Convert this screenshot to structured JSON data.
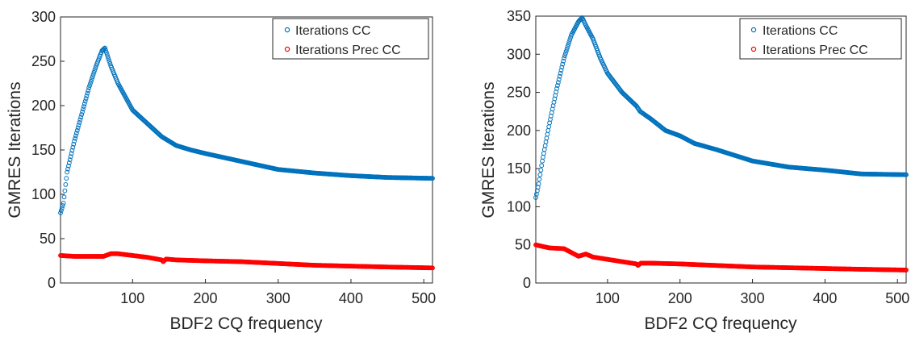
{
  "colors": {
    "series_cc": "#0072BD",
    "series_prec_cc": "#FF0000",
    "axis": "#262626",
    "background": "#FFFFFF"
  },
  "chart_data": [
    {
      "type": "scatter",
      "title": "",
      "xlabel": "BDF2 CQ frequency",
      "ylabel": "GMRES Iterations",
      "xlim": [
        1,
        512
      ],
      "ylim": [
        0,
        300
      ],
      "xticks": [
        100,
        200,
        300,
        400,
        500
      ],
      "yticks": [
        0,
        50,
        100,
        150,
        200,
        250,
        300
      ],
      "grid": false,
      "legend": "top-right",
      "marker": "open-circle",
      "series": [
        {
          "name": "Iterations CC",
          "color": "#0072BD",
          "points": [
            [
              1,
              79
            ],
            [
              5,
              90
            ],
            [
              10,
              125
            ],
            [
              20,
              160
            ],
            [
              30,
              190
            ],
            [
              40,
              220
            ],
            [
              50,
              245
            ],
            [
              58,
              262
            ],
            [
              62,
              265
            ],
            [
              70,
              245
            ],
            [
              80,
              225
            ],
            [
              90,
              210
            ],
            [
              100,
              195
            ],
            [
              120,
              180
            ],
            [
              140,
              165
            ],
            [
              160,
              155
            ],
            [
              180,
              150
            ],
            [
              200,
              146
            ],
            [
              250,
              137
            ],
            [
              300,
              128
            ],
            [
              350,
              124
            ],
            [
              400,
              121
            ],
            [
              450,
              119
            ],
            [
              512,
              118
            ]
          ]
        },
        {
          "name": "Iterations Prec CC",
          "color": "#FF0000",
          "points": [
            [
              1,
              31
            ],
            [
              20,
              30
            ],
            [
              40,
              30
            ],
            [
              60,
              30
            ],
            [
              70,
              33
            ],
            [
              80,
              33
            ],
            [
              100,
              31
            ],
            [
              120,
              29
            ],
            [
              140,
              26
            ],
            [
              142,
              24
            ],
            [
              146,
              27
            ],
            [
              160,
              26
            ],
            [
              200,
              25
            ],
            [
              250,
              24
            ],
            [
              300,
              22
            ],
            [
              350,
              20
            ],
            [
              400,
              19
            ],
            [
              450,
              18
            ],
            [
              512,
              17
            ]
          ]
        }
      ]
    },
    {
      "type": "scatter",
      "title": "",
      "xlabel": "BDF2 CQ frequency",
      "ylabel": "GMRES Iterations",
      "xlim": [
        1,
        512
      ],
      "ylim": [
        0,
        350
      ],
      "xticks": [
        100,
        200,
        300,
        400,
        500
      ],
      "yticks": [
        0,
        50,
        100,
        150,
        200,
        250,
        300,
        350
      ],
      "grid": false,
      "legend": "top-right",
      "marker": "open-circle",
      "series": [
        {
          "name": "Iterations CC",
          "color": "#0072BD",
          "points": [
            [
              1,
              112
            ],
            [
              5,
              130
            ],
            [
              10,
              160
            ],
            [
              20,
              210
            ],
            [
              30,
              255
            ],
            [
              40,
              295
            ],
            [
              50,
              325
            ],
            [
              60,
              343
            ],
            [
              65,
              348
            ],
            [
              70,
              338
            ],
            [
              80,
              320
            ],
            [
              90,
              295
            ],
            [
              100,
              275
            ],
            [
              120,
              250
            ],
            [
              140,
              232
            ],
            [
              145,
              225
            ],
            [
              160,
              215
            ],
            [
              180,
              200
            ],
            [
              200,
              193
            ],
            [
              220,
              183
            ],
            [
              250,
              175
            ],
            [
              300,
              160
            ],
            [
              350,
              152
            ],
            [
              400,
              148
            ],
            [
              450,
              143
            ],
            [
              512,
              142
            ]
          ]
        },
        {
          "name": "Iterations Prec CC",
          "color": "#FF0000",
          "points": [
            [
              1,
              50
            ],
            [
              10,
              48
            ],
            [
              20,
              46
            ],
            [
              40,
              45
            ],
            [
              50,
              40
            ],
            [
              60,
              35
            ],
            [
              70,
              38
            ],
            [
              80,
              34
            ],
            [
              100,
              31
            ],
            [
              120,
              28
            ],
            [
              140,
              25
            ],
            [
              142,
              23
            ],
            [
              146,
              26
            ],
            [
              160,
              26
            ],
            [
              200,
              25
            ],
            [
              250,
              23
            ],
            [
              300,
              21
            ],
            [
              350,
              20
            ],
            [
              400,
              19
            ],
            [
              450,
              18
            ],
            [
              512,
              17
            ]
          ]
        }
      ]
    }
  ]
}
